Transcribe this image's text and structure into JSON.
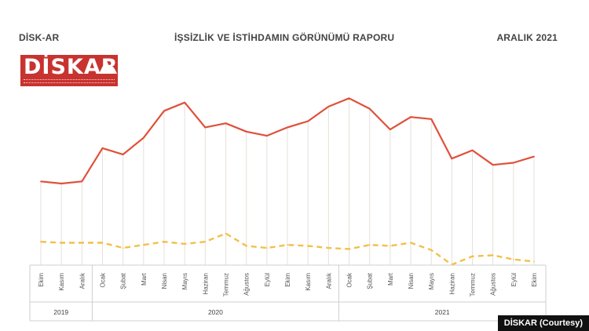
{
  "header": {
    "left": "DİSK-AR",
    "center": "İŞSİZLİK VE İSTİHDAMIN GÖRÜNÜMÜ RAPORU",
    "right": "ARALIK 2021"
  },
  "logo": {
    "text": "DİSKAR"
  },
  "courtesy": "DİSKAR (Courtesy)",
  "chart_data": {
    "type": "line",
    "categories": [
      "Ekim",
      "Kasım",
      "Aralık",
      "Ocak",
      "Şubat",
      "Mart",
      "Nisan",
      "Mayıs",
      "Haziran",
      "Temmuz",
      "Ağustos",
      "Eylül",
      "Ekim",
      "Kasım",
      "Aralık",
      "Ocak",
      "Şubat",
      "Mart",
      "Nisan",
      "Mayıs",
      "Haziran",
      "Temmuz",
      "Ağustos",
      "Eylül",
      "Ekim"
    ],
    "year_groups": [
      {
        "label": "2019",
        "count": 3
      },
      {
        "label": "2020",
        "count": 12
      },
      {
        "label": "2021",
        "count": 10
      }
    ],
    "series": [
      {
        "color": "#e0503a",
        "style": "solid",
        "values": [
          59,
          60,
          59,
          43,
          46,
          38,
          25,
          21,
          33,
          31,
          35,
          37,
          33,
          30,
          23,
          19,
          24,
          34,
          28,
          29,
          48,
          44,
          51,
          50,
          47
        ]
      },
      {
        "color": "#f2c04a",
        "style": "dashed",
        "values": [
          88,
          88.5,
          88.5,
          88.5,
          91,
          89.5,
          88,
          89,
          88,
          84,
          90,
          91,
          89.5,
          90,
          91,
          91.5,
          89.5,
          90,
          88.5,
          92,
          99,
          95,
          94.5,
          96.5,
          97.5
        ]
      }
    ],
    "ylim": [
      0,
      100
    ],
    "note": "",
    "grid": "vertical drop lines from solid series"
  }
}
